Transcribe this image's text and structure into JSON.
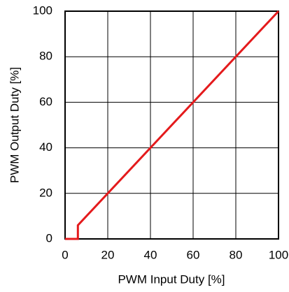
{
  "chart_data": {
    "type": "line",
    "x_label": "PWM Input Duty [%]",
    "y_label": "PWM Output Duty [%]",
    "x": [
      0,
      6,
      6,
      100
    ],
    "values": [
      0,
      0,
      6,
      100
    ],
    "color": "#e41a1c",
    "xlim": [
      0,
      100
    ],
    "xticks": [
      0,
      20,
      40,
      60,
      80,
      100
    ],
    "ylim": [
      0,
      100
    ],
    "yticks": [
      0,
      20,
      40,
      60,
      80,
      100
    ],
    "grid": true
  }
}
